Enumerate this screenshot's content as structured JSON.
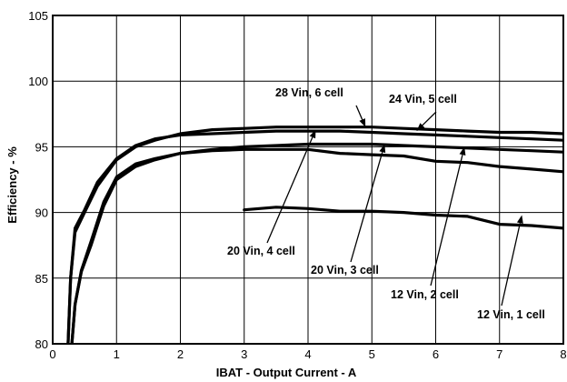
{
  "chart_data": {
    "type": "line",
    "title": "",
    "xlabel": "IBAT - Output Current - A",
    "ylabel": "Efficiency - %",
    "xlim": [
      0,
      8
    ],
    "ylim": [
      80,
      105
    ],
    "xticks": [
      0,
      1,
      2,
      3,
      4,
      5,
      6,
      7,
      8
    ],
    "yticks": [
      80,
      85,
      90,
      95,
      100,
      105
    ],
    "grid": true,
    "legend": "none",
    "series": [
      {
        "name": "28 Vin, 6 cell",
        "x": [
          0.24,
          0.28,
          0.35,
          0.5,
          0.7,
          1.0,
          1.3,
          1.6,
          2.0,
          2.5,
          3.0,
          3.5,
          4.0,
          4.5,
          5.0,
          5.5,
          6.0,
          6.5,
          7.0,
          7.5,
          8.0
        ],
        "y": [
          80,
          85,
          88.5,
          90,
          92,
          94,
          95,
          95.5,
          96,
          96.3,
          96.4,
          96.5,
          96.5,
          96.5,
          96.5,
          96.4,
          96.3,
          96.2,
          96.1,
          96.1,
          96.0
        ]
      },
      {
        "name": "24 Vin, 5 cell",
        "x": [
          0.24,
          0.28,
          0.35,
          0.5,
          0.7,
          1.0,
          1.3,
          1.6,
          2.0,
          2.5,
          3.0,
          3.5,
          4.0,
          4.5,
          5.0,
          5.5,
          6.0,
          6.5,
          7.0,
          7.5,
          8.0
        ],
        "y": [
          80,
          85,
          88.8,
          90.2,
          92.3,
          94.1,
          95.1,
          95.6,
          95.9,
          96.0,
          96.1,
          96.2,
          96.2,
          96.2,
          96.1,
          96.0,
          95.9,
          95.8,
          95.7,
          95.6,
          95.5
        ]
      },
      {
        "name": "20 Vin, 4 cell",
        "x": [
          0.3,
          0.35,
          0.45,
          0.6,
          0.8,
          1.0,
          1.3,
          1.6,
          2.0,
          2.5,
          3.0,
          3.5,
          4.0,
          4.5,
          5.0,
          5.5,
          6.0,
          6.5,
          7.0,
          7.5,
          8.0
        ],
        "y": [
          80,
          83,
          85.5,
          87.5,
          90.5,
          92.5,
          93.5,
          94,
          94.5,
          94.8,
          95.0,
          95.1,
          95.2,
          95.2,
          95.2,
          95.1,
          95.0,
          94.9,
          94.8,
          94.7,
          94.6
        ]
      },
      {
        "name": "20 Vin, 3 cell",
        "x": [
          0.3,
          0.35,
          0.45,
          0.6,
          0.8,
          1.0,
          1.3,
          1.6,
          2.0,
          2.5,
          3.0,
          3.5,
          4.0,
          4.5,
          5.0,
          5.5,
          6.0,
          6.5,
          7.0,
          7.5,
          8.0
        ],
        "y": [
          80,
          83,
          85.6,
          87.8,
          90.8,
          92.7,
          93.7,
          94.1,
          94.5,
          94.7,
          94.8,
          94.8,
          94.8,
          94.5,
          94.4,
          94.3,
          93.9,
          93.8,
          93.5,
          93.3,
          93.1
        ]
      },
      {
        "name": "12 Vin, 1 cell",
        "x": [
          3.0,
          3.5,
          4.0,
          4.5,
          5.0,
          5.5,
          6.0,
          6.5,
          7.0,
          7.5,
          8.0
        ],
        "y": [
          90.2,
          90.4,
          90.3,
          90.1,
          90.1,
          90.0,
          89.8,
          89.7,
          89.1,
          89.0,
          88.8
        ]
      }
    ],
    "annotations": [
      {
        "text": "28 Vin, 6 cell",
        "point_to": [
          4.9,
          96.5
        ]
      },
      {
        "text": "24 Vin, 5 cell",
        "point_to": [
          5.7,
          96.2
        ]
      },
      {
        "text": "20 Vin, 4 cell",
        "point_to": [
          4.12,
          96.3
        ]
      },
      {
        "text": "20 Vin, 3 cell",
        "point_to": [
          5.2,
          95.2
        ]
      },
      {
        "text": "12 Vin, 2 cell",
        "point_to": [
          6.45,
          95.0
        ]
      },
      {
        "text": "12 Vin, 1 cell",
        "point_to": [
          7.35,
          89.8
        ]
      }
    ]
  }
}
